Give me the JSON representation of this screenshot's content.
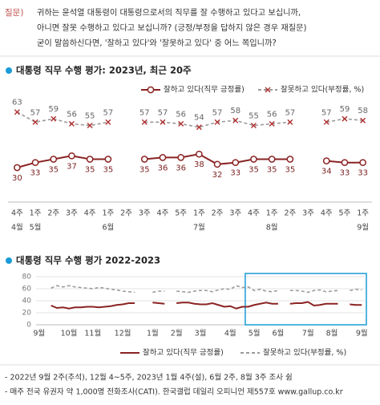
{
  "question": {
    "label": "질문)",
    "lines": [
      "귀하는 윤석열 대통령이 대통령으로서의 직무를 잘 수행하고 있다고 보십니까,",
      "아니면 잘못 수행하고 있다고 보십니까? (긍정/부정을 답하지 않은 경우 재질문)",
      "굳이 말씀하신다면, '잘하고 있다'와 '잘못하고 있다' 중 어느 쪽입니까?"
    ]
  },
  "chart_data": [
    {
      "type": "line",
      "title": "대통령 직무 수행 평가: 2023년, 최근 20주",
      "categories": [
        "4주",
        "1주",
        "2주",
        "3주",
        "4주",
        "1주",
        "2주",
        "3주",
        "4주",
        "5주",
        "1주",
        "2주",
        "3주",
        "4주",
        "1주",
        "2주",
        "3주",
        "4주",
        "5주",
        "1주"
      ],
      "months": [
        "4월",
        "5월",
        null,
        null,
        null,
        "6월",
        null,
        null,
        null,
        null,
        "7월",
        null,
        null,
        null,
        "8월",
        null,
        null,
        null,
        null,
        "9월"
      ],
      "ylim": [
        20,
        70
      ],
      "data_labels": true,
      "series": [
        {
          "name": "잘하고 있다(직무 긍정률)",
          "color": "#8b2323",
          "marker": "circle",
          "dashed": false,
          "values": [
            30,
            33,
            35,
            37,
            35,
            35,
            null,
            35,
            36,
            36,
            38,
            32,
            33,
            35,
            35,
            35,
            null,
            34,
            33,
            33
          ]
        },
        {
          "name": "잘못하고 있다(부정률, %)",
          "color": "#9a9a9a",
          "marker": "x",
          "dashed": true,
          "values": [
            63,
            57,
            59,
            56,
            55,
            57,
            null,
            57,
            57,
            56,
            54,
            57,
            58,
            55,
            56,
            57,
            null,
            57,
            59,
            58
          ]
        }
      ]
    },
    {
      "type": "line",
      "title": "대통령 직무 수행 평가 2022-2023",
      "categories": [
        "9월",
        null,
        null,
        null,
        null,
        "10월",
        null,
        null,
        null,
        "11월",
        null,
        null,
        null,
        null,
        "12월",
        null,
        null,
        null,
        null,
        "1월",
        null,
        null,
        null,
        "2월",
        null,
        null,
        null,
        "3월",
        null,
        null,
        null,
        null,
        "4월",
        null,
        null,
        null,
        "5월",
        null,
        null,
        null,
        "6월",
        null,
        null,
        null,
        null,
        "7월",
        null,
        null,
        null,
        "8월",
        null,
        null,
        null,
        null,
        "9월"
      ],
      "ylim": [
        0,
        80
      ],
      "yticks": [
        0,
        20,
        40,
        60,
        80
      ],
      "grid": true,
      "data_labels": false,
      "series": [
        {
          "name": "잘하고 있다(직무 긍정률)",
          "color": "#8b2323",
          "marker": "none",
          "dashed": false,
          "values": [
            33,
            null,
            32,
            28,
            29,
            27,
            29,
            29,
            30,
            30,
            29,
            30,
            31,
            33,
            34,
            36,
            36,
            null,
            null,
            37,
            36,
            35,
            null,
            36,
            37,
            37,
            35,
            34,
            34,
            36,
            33,
            30,
            31,
            27,
            30,
            30,
            33,
            35,
            37,
            35,
            35,
            null,
            35,
            36,
            36,
            38,
            32,
            33,
            35,
            35,
            35,
            null,
            34,
            33,
            33
          ]
        },
        {
          "name": "잘못하고 있다(부정률, %)",
          "color": "#9a9a9a",
          "marker": "none",
          "dashed": true,
          "values": [
            60,
            null,
            61,
            65,
            63,
            65,
            63,
            62,
            61,
            60,
            62,
            61,
            59,
            58,
            56,
            55,
            54,
            null,
            null,
            54,
            56,
            56,
            null,
            56,
            55,
            54,
            56,
            57,
            57,
            55,
            58,
            60,
            59,
            65,
            62,
            63,
            57,
            59,
            56,
            55,
            57,
            null,
            57,
            57,
            56,
            54,
            57,
            58,
            55,
            56,
            57,
            null,
            57,
            59,
            58
          ]
        }
      ]
    }
  ],
  "footnotes": [
    "- 2022년 9월 2주(추석), 12월 4~5주, 2023년 1월 4주(설), 6월 2주, 8월 3주 조사 쉼",
    "- 매주 전국 유권자 약 1,000명 전화조사(CATI). 한국갤럽 데일리 오피니언 제557호 www.gallup.co.kr"
  ]
}
